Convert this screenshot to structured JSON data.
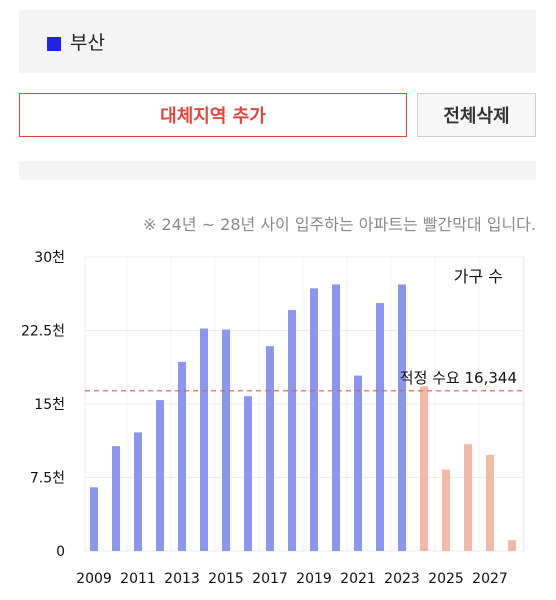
{
  "region": {
    "name": "부산",
    "color": "#2323e6"
  },
  "buttons": {
    "add_label": "대체지역 추가",
    "clear_label": "전체삭제"
  },
  "note": "※ 24년 ~ 28년 사이 입주하는 아파트는 빨간막대 입니다.",
  "chart_data": {
    "type": "bar",
    "title": "",
    "xlabel": "",
    "ylabel": "",
    "legend": "가구 수",
    "legend_position": "top-right",
    "x": [
      2009,
      2010,
      2011,
      2012,
      2013,
      2014,
      2015,
      2016,
      2017,
      2018,
      2019,
      2020,
      2021,
      2022,
      2023,
      2024,
      2025,
      2026,
      2027,
      2028
    ],
    "x_tick_labels": [
      "2009",
      "2011",
      "2013",
      "2015",
      "2017",
      "2019",
      "2021",
      "2023",
      "2025",
      "2027"
    ],
    "values": [
      6500,
      10700,
      12100,
      15400,
      19300,
      22700,
      22600,
      15800,
      20900,
      24600,
      26800,
      27200,
      17900,
      25300,
      27200,
      16800,
      8300,
      10900,
      9800,
      1100
    ],
    "past_color": "#8c96f0",
    "future_color": "#f4b8a8",
    "future_from": 2024,
    "ylim": [
      0,
      30000
    ],
    "y_ticks": [
      0,
      7500,
      15000,
      22500,
      30000
    ],
    "y_tick_labels": [
      "0",
      "7.5천",
      "15천",
      "22.5천",
      "30천"
    ],
    "reference_line": {
      "value": 16344,
      "label": "적정 수요 16,344",
      "color": "#e05a4e"
    },
    "grid": true
  }
}
